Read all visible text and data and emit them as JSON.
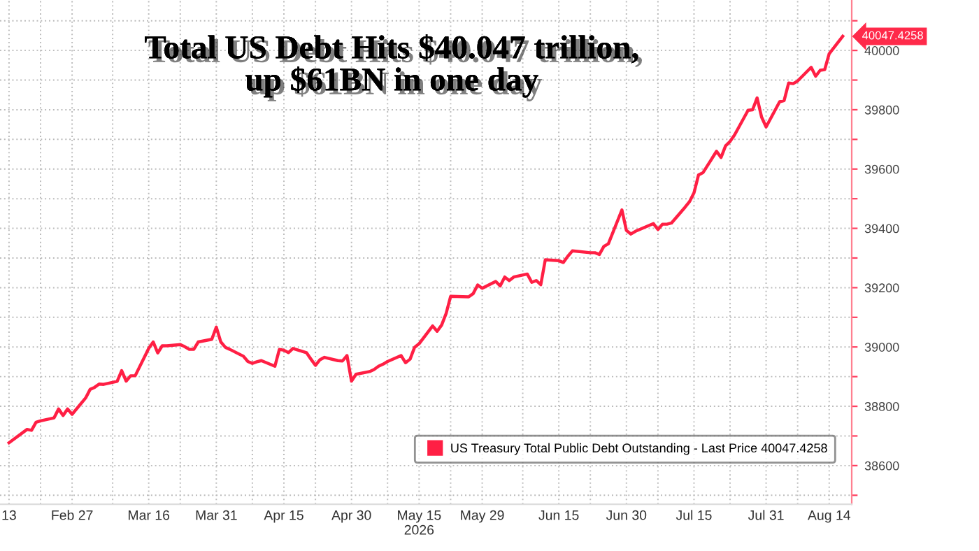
{
  "chart_data": {
    "type": "line",
    "title": "Total US Debt Hits $40.047 trillion,\nup $61BN in one day",
    "x": [
      "2026-02-13",
      "2026-02-17",
      "2026-02-18",
      "2026-02-19",
      "2026-02-20",
      "2026-02-23",
      "2026-02-24",
      "2026-02-25",
      "2026-02-26",
      "2026-02-27",
      "2026-03-02",
      "2026-03-03",
      "2026-03-04",
      "2026-03-05",
      "2026-03-06",
      "2026-03-09",
      "2026-03-10",
      "2026-03-11",
      "2026-03-12",
      "2026-03-13",
      "2026-03-16",
      "2026-03-17",
      "2026-03-18",
      "2026-03-19",
      "2026-03-20",
      "2026-03-23",
      "2026-03-24",
      "2026-03-25",
      "2026-03-26",
      "2026-03-27",
      "2026-03-30",
      "2026-03-31",
      "2026-04-01",
      "2026-04-02",
      "2026-04-03",
      "2026-04-06",
      "2026-04-07",
      "2026-04-08",
      "2026-04-09",
      "2026-04-10",
      "2026-04-13",
      "2026-04-14",
      "2026-04-15",
      "2026-04-16",
      "2026-04-17",
      "2026-04-20",
      "2026-04-21",
      "2026-04-22",
      "2026-04-23",
      "2026-04-24",
      "2026-04-27",
      "2026-04-28",
      "2026-04-29",
      "2026-04-30",
      "2026-05-01",
      "2026-05-04",
      "2026-05-05",
      "2026-05-06",
      "2026-05-07",
      "2026-05-08",
      "2026-05-11",
      "2026-05-12",
      "2026-05-13",
      "2026-05-14",
      "2026-05-15",
      "2026-05-18",
      "2026-05-19",
      "2026-05-20",
      "2026-05-21",
      "2026-05-22",
      "2026-05-26",
      "2026-05-27",
      "2026-05-28",
      "2026-05-29",
      "2026-06-01",
      "2026-06-02",
      "2026-06-03",
      "2026-06-04",
      "2026-06-05",
      "2026-06-08",
      "2026-06-09",
      "2026-06-10",
      "2026-06-11",
      "2026-06-12",
      "2026-06-15",
      "2026-06-16",
      "2026-06-17",
      "2026-06-18",
      "2026-06-22",
      "2026-06-23",
      "2026-06-24",
      "2026-06-25",
      "2026-06-26",
      "2026-06-29",
      "2026-06-30",
      "2026-07-01",
      "2026-07-02",
      "2026-07-06",
      "2026-07-07",
      "2026-07-08",
      "2026-07-09",
      "2026-07-10",
      "2026-07-13",
      "2026-07-14",
      "2026-07-15",
      "2026-07-16",
      "2026-07-17",
      "2026-07-20",
      "2026-07-21",
      "2026-07-22",
      "2026-07-23",
      "2026-07-24",
      "2026-07-27",
      "2026-07-28",
      "2026-07-29",
      "2026-07-30",
      "2026-07-31",
      "2026-08-03",
      "2026-08-04",
      "2026-08-05",
      "2026-08-06",
      "2026-08-07",
      "2026-08-10",
      "2026-08-11",
      "2026-08-12",
      "2026-08-13",
      "2026-08-14",
      "2026-08-17"
    ],
    "series": [
      {
        "name": "US Treasury Total Public Debt Outstanding - Last Price 40047.4258",
        "color": "#ff1f44",
        "values": [
          38677,
          38722,
          38719,
          38746,
          38751,
          38761,
          38791,
          38769,
          38791,
          38773,
          38828,
          38857,
          38864,
          38875,
          38874,
          38884,
          38920,
          38885,
          38903,
          38903,
          38995,
          39017,
          38980,
          39004,
          39004,
          39008,
          39001,
          38992,
          38992,
          39017,
          39026,
          39067,
          39017,
          38999,
          38992,
          38969,
          38951,
          38945,
          38950,
          38954,
          38935,
          38992,
          38989,
          38981,
          38995,
          38981,
          38959,
          38938,
          38957,
          38965,
          38954,
          38953,
          38971,
          38885,
          38908,
          38917,
          38924,
          38935,
          38942,
          38951,
          38971,
          38947,
          38959,
          38999,
          39011,
          39071,
          39053,
          39074,
          39113,
          39171,
          39169,
          39180,
          39209,
          39198,
          39221,
          39206,
          39236,
          39224,
          39236,
          39246,
          39218,
          39224,
          39210,
          39294,
          39291,
          39285,
          39306,
          39324,
          39318,
          39318,
          39312,
          39339,
          39348,
          39462,
          39393,
          39381,
          39390,
          39416,
          39396,
          39414,
          39414,
          39418,
          39471,
          39490,
          39520,
          39580,
          39588,
          39660,
          39639,
          39678,
          39693,
          39715,
          39798,
          39800,
          39840,
          39775,
          39742,
          39827,
          39831,
          39890,
          39888,
          39897,
          39943,
          39913,
          39933,
          39935,
          39989,
          40047.4258
        ]
      }
    ],
    "xlim": [
      "2026-02-11",
      "2026-08-19"
    ],
    "xticks": [
      {
        "value": "2026-02-13",
        "label": "13"
      },
      {
        "value": "2026-02-20",
        "label": null
      },
      {
        "value": "2026-02-27",
        "label": "Feb 27"
      },
      {
        "value": "2026-03-08",
        "label": null
      },
      {
        "value": "2026-03-16",
        "label": "Mar 16"
      },
      {
        "value": "2026-03-23",
        "label": null
      },
      {
        "value": "2026-03-31",
        "label": "Mar 31"
      },
      {
        "value": "2026-04-08",
        "label": null
      },
      {
        "value": "2026-04-15",
        "label": "Apr 15"
      },
      {
        "value": "2026-04-22",
        "label": null
      },
      {
        "value": "2026-04-30",
        "label": "Apr 30"
      },
      {
        "value": "2026-05-08",
        "label": null
      },
      {
        "value": "2026-05-15",
        "label": "May 15\n2026"
      },
      {
        "value": "2026-05-22",
        "label": null
      },
      {
        "value": "2026-05-29",
        "label": "May 29"
      },
      {
        "value": "2026-06-07",
        "label": null
      },
      {
        "value": "2026-06-15",
        "label": "Jun 15"
      },
      {
        "value": "2026-06-22",
        "label": null
      },
      {
        "value": "2026-06-30",
        "label": "Jun 30"
      },
      {
        "value": "2026-07-07",
        "label": null
      },
      {
        "value": "2026-07-15",
        "label": "Jul 15"
      },
      {
        "value": "2026-07-23",
        "label": null
      },
      {
        "value": "2026-07-31",
        "label": "Jul 31"
      },
      {
        "value": "2026-08-07",
        "label": null
      },
      {
        "value": "2026-08-14",
        "label": "Aug 14"
      }
    ],
    "ylim": [
      38470,
      40170
    ],
    "yticks": [
      {
        "value": 38500,
        "label": null
      },
      38600,
      {
        "value": 38700,
        "label": null
      },
      38800,
      {
        "value": 38900,
        "label": null
      },
      39000,
      {
        "value": 39100,
        "label": null
      },
      39200,
      {
        "value": 39300,
        "label": null
      },
      39400,
      {
        "value": 39500,
        "label": null
      },
      39600,
      {
        "value": 39700,
        "label": null
      },
      39800,
      {
        "value": 39900,
        "label": null
      },
      40000,
      {
        "value": 40100,
        "label": null
      }
    ],
    "grid": true,
    "legend": "bottom right",
    "annotations": [
      {
        "text": "40047.4258",
        "x": "2026-08-17",
        "y": 40047.4258
      }
    ]
  }
}
